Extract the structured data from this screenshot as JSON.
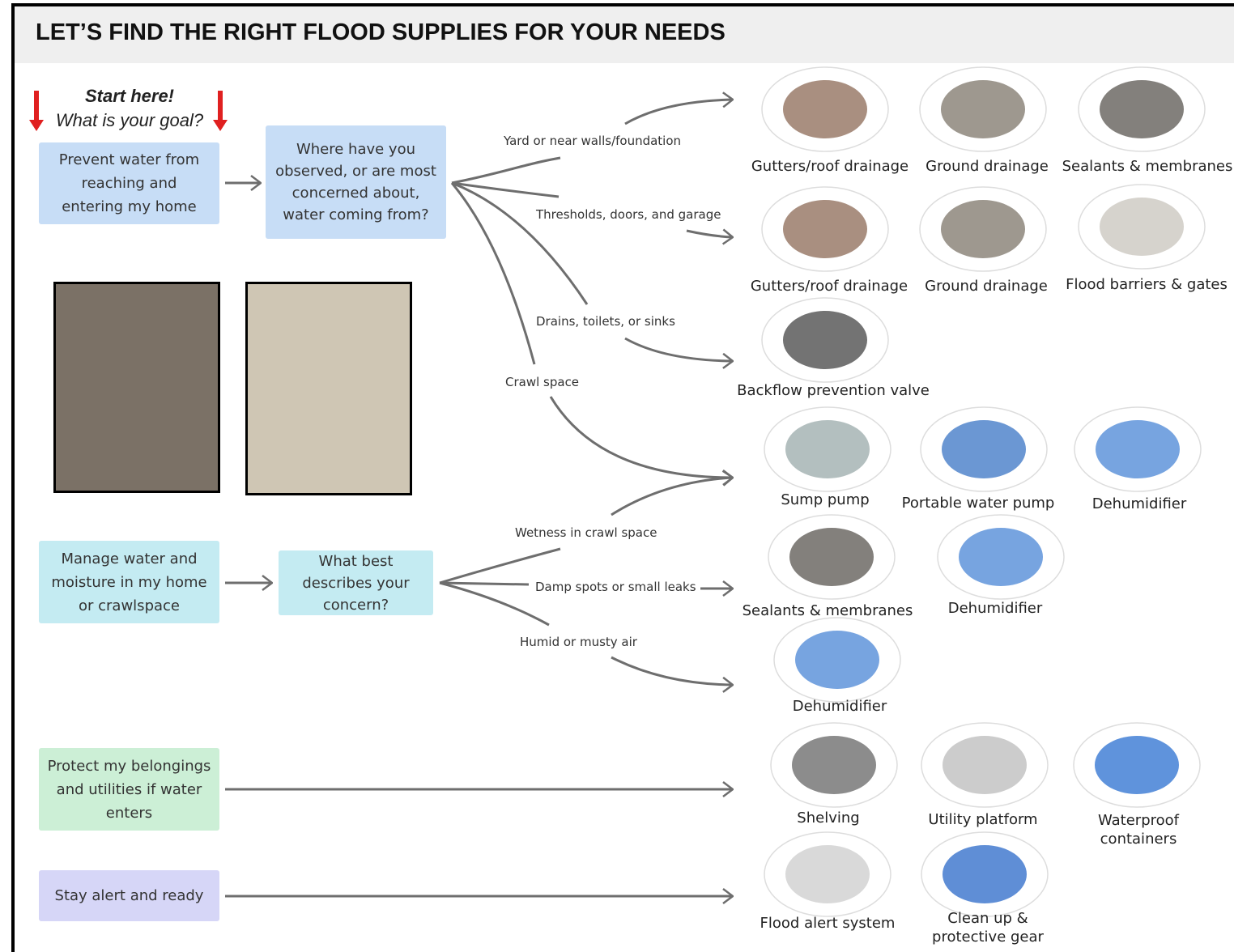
{
  "title": "LET’S FIND THE RIGHT FLOOD SUPPLIES FOR YOUR NEEDS",
  "start": {
    "heading": "Start here!",
    "prompt": "What is your goal?"
  },
  "goals": [
    "Prevent water from reaching and entering my home",
    "Manage water and moisture in my home or crawlspace",
    "Protect my belongings and utilities if water enters",
    "Stay alert and ready"
  ],
  "questions": [
    "Where have you observed, or are most concerned about, water coming from?",
    "What best describes your concern?"
  ],
  "branches": [
    "Yard or near walls/foundation",
    "Thresholds, doors, and garage",
    "Drains, toilets, or sinks",
    "Crawl space",
    "Wetness in crawl space",
    "Damp spots or small leaks",
    "Humid or musty air"
  ],
  "products": [
    "Gutters/roof drainage",
    "Ground drainage",
    "Sealants & membranes",
    "Gutters/roof drainage",
    "Ground drainage",
    "Flood barriers & gates",
    "Backflow prevention valve",
    "Sump pump",
    "Portable water pump",
    "Dehumidifier",
    "Sealants & membranes",
    "Dehumidifier",
    "Dehumidifier",
    "Shelving",
    "Utility platform",
    "Waterproof containers",
    "Flood alert system",
    "Clean up & protective gear"
  ]
}
